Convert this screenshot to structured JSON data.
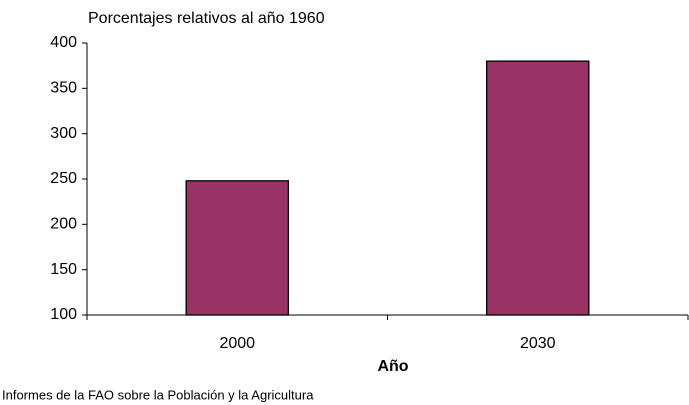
{
  "chart_data": {
    "type": "bar",
    "title": "Porcentajes relativos al año 1960",
    "x_label": "Año",
    "source": "Informes de la FAO sobre la Población y la Agricultura",
    "categories": [
      "2000",
      "2030"
    ],
    "values": [
      248,
      380
    ],
    "color": "#993366",
    "ylim": [
      100,
      400
    ],
    "yticks": [
      100,
      150,
      200,
      250,
      300,
      350,
      400
    ],
    "grid": false
  }
}
